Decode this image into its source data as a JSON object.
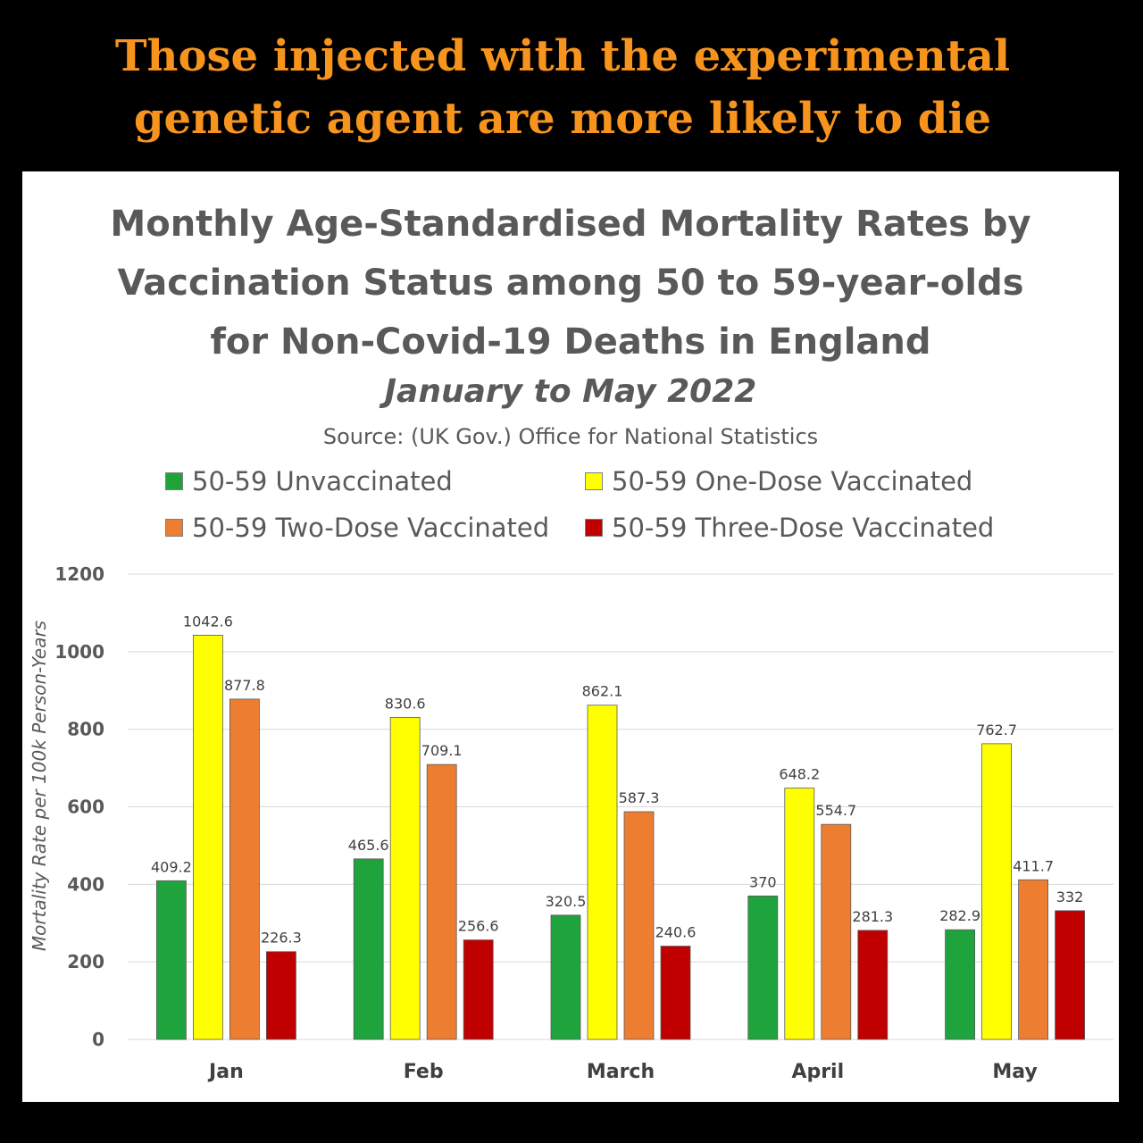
{
  "headline": {
    "line1": "Those injected with the experimental",
    "line2": "genetic agent are more likely to die"
  },
  "colors": {
    "headline": "#f7941d",
    "unvaccinated": "#1fa33c",
    "one_dose": "#ffff00",
    "two_dose": "#ed7d31",
    "three_dose": "#c00000",
    "grid": "#d9d9d9"
  },
  "chart_data": {
    "type": "bar",
    "title_lines": [
      "Monthly Age-Standardised Mortality Rates by",
      "Vaccination Status among 50 to 59-year-olds",
      "for Non-Covid-19 Deaths in England"
    ],
    "subtitle": "January to May 2022",
    "source": "Source: (UK Gov.) Office for National Statistics",
    "ylabel": "Mortality Rate per 100k Person-Years",
    "xlabel": "",
    "ylim": [
      0,
      1200
    ],
    "yticks": [
      0,
      200,
      400,
      600,
      800,
      1000,
      1200
    ],
    "grid": true,
    "legend_position": "top",
    "categories": [
      "Jan",
      "Feb",
      "March",
      "April",
      "May"
    ],
    "series": [
      {
        "name": "50-59 Unvaccinated",
        "color_key": "unvaccinated",
        "values": [
          409.2,
          465.6,
          320.5,
          370,
          282.9
        ]
      },
      {
        "name": "50-59 One-Dose Vaccinated",
        "color_key": "one_dose",
        "values": [
          1042.6,
          830.6,
          862.1,
          648.2,
          762.7
        ]
      },
      {
        "name": "50-59 Two-Dose Vaccinated",
        "color_key": "two_dose",
        "values": [
          877.8,
          709.1,
          587.3,
          554.7,
          411.7
        ]
      },
      {
        "name": "50-59 Three-Dose Vaccinated",
        "color_key": "three_dose",
        "values": [
          226.3,
          256.6,
          240.6,
          281.3,
          332
        ]
      }
    ]
  }
}
